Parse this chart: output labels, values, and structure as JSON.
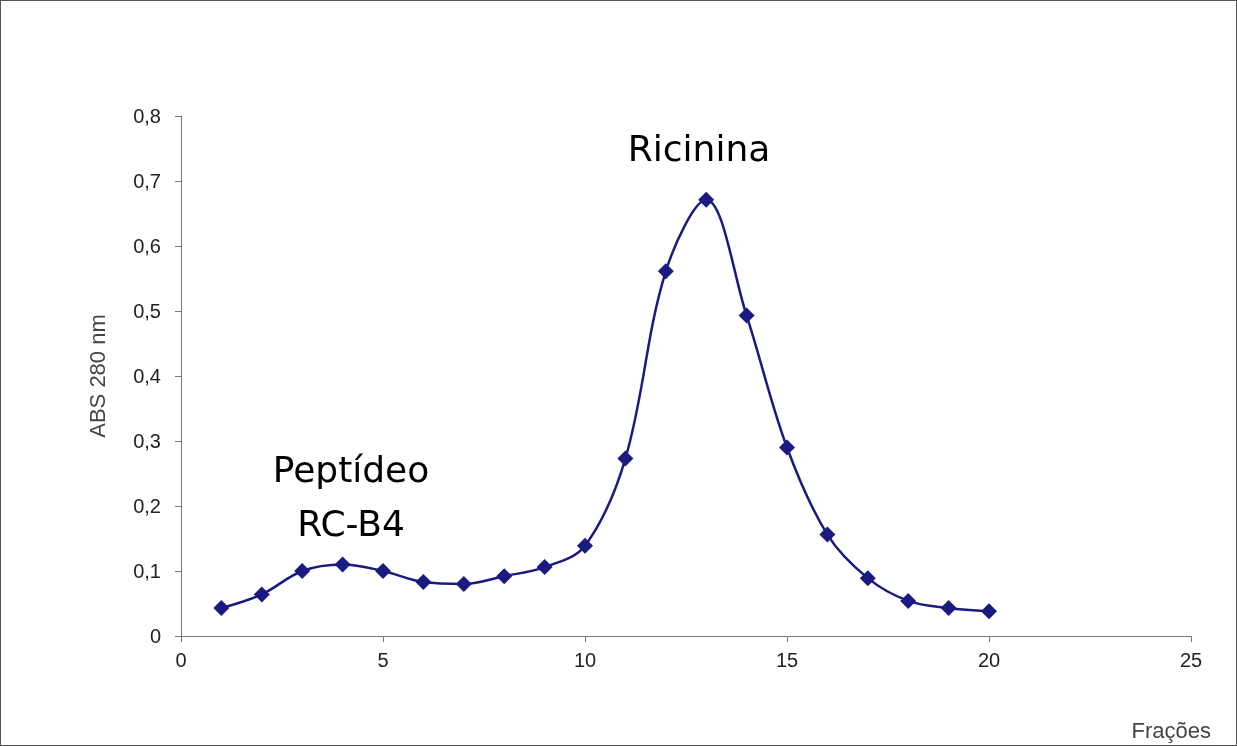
{
  "chart_data": {
    "type": "line",
    "xlabel": "Frações",
    "ylabel": "ABS 280 nm",
    "x": [
      1,
      2,
      3,
      4,
      5,
      6,
      7,
      8,
      9,
      10,
      11,
      12,
      13,
      14,
      15,
      16,
      17,
      18,
      19,
      20
    ],
    "series": [
      {
        "color": "#1a1a80",
        "values": [
          0.043,
          0.064,
          0.1,
          0.11,
          0.1,
          0.083,
          0.08,
          0.092,
          0.106,
          0.139,
          0.273,
          0.561,
          0.671,
          0.493,
          0.29,
          0.156,
          0.089,
          0.054,
          0.043,
          0.038
        ]
      }
    ],
    "xlim": [
      0,
      25
    ],
    "xticks": [
      0,
      5,
      10,
      15,
      20,
      25
    ],
    "ylim": [
      0,
      0.8
    ],
    "yticks": [
      0,
      {
        "value": 0.1,
        "label": "0,1"
      },
      {
        "value": 0.2,
        "label": "0,2"
      },
      {
        "value": 0.3,
        "label": "0,3"
      },
      {
        "value": 0.4,
        "label": "0,4"
      },
      {
        "value": 0.5,
        "label": "0,5"
      },
      {
        "value": 0.6,
        "label": "0,6"
      },
      {
        "value": 0.7,
        "label": "0,7"
      },
      {
        "value": 0.8,
        "label": "0,8"
      }
    ],
    "marker": "diamond",
    "line_style": "solid",
    "grid": false,
    "annotations": [
      "Ricinina",
      "Peptídeo\nRC-B4"
    ]
  }
}
